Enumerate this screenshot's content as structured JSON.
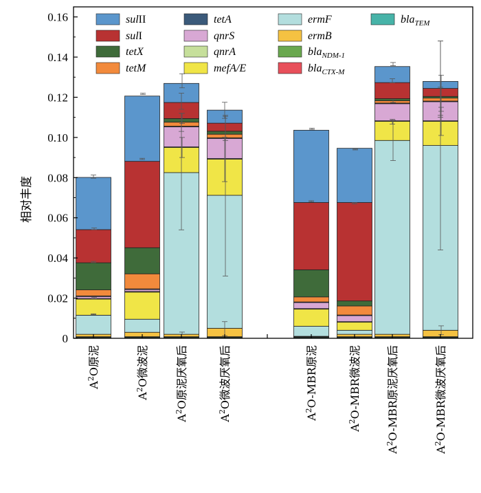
{
  "chart_data": {
    "type": "bar",
    "stacked": true,
    "ylabel": "相对丰度",
    "ylim": [
      0,
      0.165
    ],
    "yticks": [
      0,
      0.02,
      0.04,
      0.06,
      0.08,
      0.1,
      0.12,
      0.14,
      0.16
    ],
    "ytick_labels": [
      "0",
      "0.02",
      "0.04",
      "0.06",
      "0.08",
      "0.10",
      "0.12",
      "0.14",
      "0.16"
    ],
    "legend_position": "top",
    "categories": [
      "A²O原泥",
      "A²O微波泥",
      "A²O原泥厌氧后",
      "A²O微波厌氧后",
      "A²O-MBR原泥",
      "A²O-MBR微波泥",
      "A²O-MBR原泥厌氧后",
      "A²O-MBR微波厌氧后"
    ],
    "category_labels": [
      {
        "base": "A",
        "sup": "2",
        "rest": "O原泥"
      },
      {
        "base": "A",
        "sup": "2",
        "rest": "O微波泥"
      },
      {
        "base": "A",
        "sup": "2",
        "rest": "O原泥厌氧后"
      },
      {
        "base": "A",
        "sup": "2",
        "rest": "O微波厌氧后"
      },
      {
        "base": "A",
        "sup": "2",
        "rest": "O-MBR原泥"
      },
      {
        "base": "A",
        "sup": "2",
        "rest": "O-MBR微波泥"
      },
      {
        "base": "A",
        "sup": "2",
        "rest": "O-MBR原泥厌氧后"
      },
      {
        "base": "A",
        "sup": "2",
        "rest": "O-MBR微波厌氧后"
      }
    ],
    "series": [
      {
        "key": "blaTEM",
        "base": "bla",
        "sub": "TEM",
        "color": "#47b3a8",
        "values": [
          0.0004,
          0.0004,
          0.0004,
          0.0004,
          0.0004,
          0.0004,
          0.0004,
          0.0004
        ]
      },
      {
        "key": "blaCTX-M",
        "base": "bla",
        "sub": "CTX-M",
        "color": "#e8505b",
        "values": [
          0.0001,
          0.0001,
          0.0001,
          0.0001,
          0.0001,
          0.0001,
          0.0001,
          0.0001
        ]
      },
      {
        "key": "blaNDM-1",
        "base": "bla",
        "sub": "NDM-1",
        "color": "#6aa84f",
        "values": [
          0.0003,
          0.0003,
          0.0003,
          0.0003,
          0.0003,
          0.0003,
          0.0003,
          0.0003
        ]
      },
      {
        "key": "ermB",
        "base": "ermB",
        "sub": "",
        "color": "#f5c242",
        "values": [
          0.0012,
          0.0022,
          0.0012,
          0.0042,
          0.0002,
          0.0012,
          0.0012,
          0.0032
        ]
      },
      {
        "key": "ermF",
        "base": "ermF",
        "sub": "",
        "color": "#b3dede",
        "values": [
          0.0095,
          0.0065,
          0.0805,
          0.0662,
          0.005,
          0.002,
          0.0965,
          0.092
        ]
      },
      {
        "key": "mefA/E",
        "base": "mefA/E",
        "sub": "",
        "color": "#f0e547",
        "values": [
          0.008,
          0.0135,
          0.0125,
          0.018,
          0.0085,
          0.004,
          0.0095,
          0.012
        ]
      },
      {
        "key": "qnrA",
        "base": "qnrA",
        "sub": "",
        "color": "#c6df9b",
        "values": [
          0.0003,
          0.0003,
          0.0003,
          0.0003,
          0.0003,
          0.0003,
          0.0003,
          0.0003
        ]
      },
      {
        "key": "qnrS",
        "base": "qnrS",
        "sub": "",
        "color": "#d8a8d4",
        "values": [
          0.001,
          0.001,
          0.01,
          0.01,
          0.003,
          0.003,
          0.0085,
          0.0095
        ]
      },
      {
        "key": "tetA",
        "base": "tetA",
        "sub": "",
        "color": "#3b5a7a",
        "values": [
          0.0003,
          0.0003,
          0.0003,
          0.0003,
          0.0003,
          0.0003,
          0.0003,
          0.0003
        ]
      },
      {
        "key": "tetM",
        "base": "tetM",
        "sub": "",
        "color": "#f28a3c",
        "values": [
          0.003,
          0.0075,
          0.002,
          0.0018,
          0.0025,
          0.0045,
          0.0012,
          0.0015
        ]
      },
      {
        "key": "tetX",
        "base": "tetX",
        "sub": "",
        "color": "#3f6b3a",
        "values": [
          0.0135,
          0.013,
          0.0018,
          0.0015,
          0.0135,
          0.0025,
          0.001,
          0.0008
        ]
      },
      {
        "key": "sulI",
        "base": "sul",
        "roman": "I",
        "sub": "",
        "color": "#b83232",
        "values": [
          0.0165,
          0.043,
          0.008,
          0.004,
          0.0335,
          0.049,
          0.008,
          0.004
        ]
      },
      {
        "key": "sulII",
        "base": "sul",
        "roman": "II",
        "sub": "",
        "color": "#5b96cc",
        "values": [
          0.026,
          0.0325,
          0.0095,
          0.0065,
          0.036,
          0.027,
          0.008,
          0.0035
        ]
      }
    ],
    "legend_order": [
      [
        "sulII",
        "tetA",
        "ermF",
        "blaTEM"
      ],
      [
        "sulI",
        "qnrS",
        "ermB"
      ],
      [
        "tetX",
        "qnrA",
        "blaNDM-1"
      ],
      [
        "tetM",
        "mefA/E",
        "blaCTX-M"
      ]
    ],
    "error_bars": [
      {
        "cat": 0,
        "y": 0.0805,
        "err": 0.0008
      },
      {
        "cat": 0,
        "y": 0.0545,
        "err": 0.0004
      },
      {
        "cat": 0,
        "y": 0.038,
        "err": 0.0003
      },
      {
        "cat": 0,
        "y": 0.02,
        "err": 0.0003
      },
      {
        "cat": 0,
        "y": 0.012,
        "err": 0.0002
      },
      {
        "cat": 1,
        "y": 0.1217,
        "err": 0.0003
      },
      {
        "cat": 1,
        "y": 0.0893,
        "err": 0.0003
      },
      {
        "cat": 2,
        "y": 0.1282,
        "err": 0.0035
      },
      {
        "cat": 2,
        "y": 0.118,
        "err": 0.004
      },
      {
        "cat": 2,
        "y": 0.1095,
        "err": 0.0025
      },
      {
        "cat": 2,
        "y": 0.106,
        "err": 0.003
      },
      {
        "cat": 2,
        "y": 0.095,
        "err": 0.005
      },
      {
        "cat": 2,
        "y": 0.083,
        "err": 0.029
      },
      {
        "cat": 2,
        "y": 0.0025,
        "err": 0.0006
      },
      {
        "cat": 3,
        "y": 0.1135,
        "err": 0.004
      },
      {
        "cat": 3,
        "y": 0.1045,
        "err": 0.006
      },
      {
        "cat": 3,
        "y": 0.089,
        "err": 0.011
      },
      {
        "cat": 3,
        "y": 0.071,
        "err": 0.04
      },
      {
        "cat": 3,
        "y": 0.0048,
        "err": 0.0035
      },
      {
        "cat": 4,
        "y": 0.1043,
        "err": 0.0003
      },
      {
        "cat": 4,
        "y": 0.0682,
        "err": 0.0003
      },
      {
        "cat": 5,
        "y": 0.094,
        "err": 0.0002
      },
      {
        "cat": 5,
        "y": 0.0672,
        "err": 0.0003
      },
      {
        "cat": 6,
        "y": 0.1365,
        "err": 0.0008
      },
      {
        "cat": 6,
        "y": 0.1282,
        "err": 0.001
      },
      {
        "cat": 6,
        "y": 0.1182,
        "err": 0.0008
      },
      {
        "cat": 6,
        "y": 0.1078,
        "err": 0.0012
      },
      {
        "cat": 6,
        "y": 0.0985,
        "err": 0.01
      },
      {
        "cat": 7,
        "y": 0.129,
        "err": 0.019
      },
      {
        "cat": 7,
        "y": 0.122,
        "err": 0.009
      },
      {
        "cat": 7,
        "y": 0.118,
        "err": 0.007
      },
      {
        "cat": 7,
        "y": 0.108,
        "err": 0.007
      },
      {
        "cat": 7,
        "y": 0.096,
        "err": 0.052
      },
      {
        "cat": 7,
        "y": 0.004,
        "err": 0.0022
      }
    ]
  }
}
